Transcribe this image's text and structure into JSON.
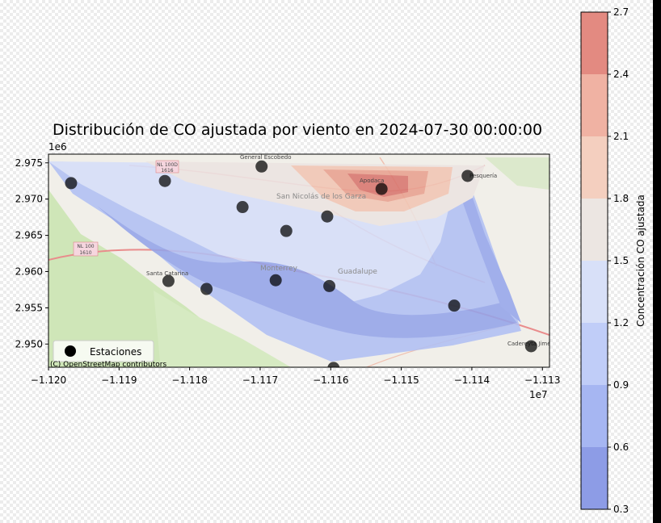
{
  "chart_data": {
    "type": "heatmap",
    "title": "Distribución de CO ajustada por viento en 2024-07-30 00:00:00",
    "x_offset_label": "1e7",
    "y_offset_label": "1e6",
    "xlim": [
      -11.2,
      -11.129
    ],
    "ylim": [
      2.9468,
      2.9762
    ],
    "x_ticks": [
      -11.2,
      -11.19,
      -11.18,
      -11.17,
      -11.16,
      -11.15,
      -11.14,
      -11.13
    ],
    "x_tick_labels": [
      "−1.120",
      "−1.119",
      "−1.118",
      "−1.117",
      "−1.116",
      "−1.115",
      "−1.114",
      "−1.113"
    ],
    "y_ticks": [
      2.95,
      2.955,
      2.96,
      2.965,
      2.97,
      2.975
    ],
    "y_tick_labels": [
      "2.950",
      "2.955",
      "2.960",
      "2.965",
      "2.970",
      "2.975"
    ],
    "colorbar": {
      "label": "Concentración CO ajustada",
      "levels": [
        0.3,
        0.6,
        0.9,
        1.2,
        1.5,
        1.8,
        2.1,
        2.4,
        2.7
      ],
      "tick_labels": [
        "0.3",
        "0.6",
        "0.9",
        "1.2",
        "1.5",
        "1.8",
        "2.1",
        "2.4",
        "2.7"
      ],
      "colors": [
        "#8d9ce6",
        "#a6b6f2",
        "#c0cdf8",
        "#d8e0f8",
        "#ece6e2",
        "#f4cfbf",
        "#f0b2a3",
        "#e38a81"
      ]
    },
    "legend": {
      "label": "Estaciones",
      "placement": "lower-left"
    },
    "attribution": "(C) OpenStreetMap contributors",
    "map_labels": [
      "General Escobedo",
      "San Nicolás de los Garza",
      "Apodaca",
      "Pesquería",
      "Monterrey",
      "Guadalupe",
      "Santa Catarina",
      "Cadereyta Jiménez",
      "NL 100",
      "1610",
      "NL 100D",
      "1616"
    ],
    "stations": [
      {
        "x": -11.1968,
        "y": 2.9722
      },
      {
        "x": -11.1835,
        "y": 2.9725
      },
      {
        "x": -11.1698,
        "y": 2.9745
      },
      {
        "x": -11.1725,
        "y": 2.9689
      },
      {
        "x": -11.1663,
        "y": 2.9656
      },
      {
        "x": -11.1605,
        "y": 2.9676
      },
      {
        "x": -11.1528,
        "y": 2.9714
      },
      {
        "x": -11.1406,
        "y": 2.9732
      },
      {
        "x": -11.183,
        "y": 2.9587
      },
      {
        "x": -11.1776,
        "y": 2.9576
      },
      {
        "x": -11.1678,
        "y": 2.9588
      },
      {
        "x": -11.1602,
        "y": 2.958
      },
      {
        "x": -11.1596,
        "y": 2.9467
      },
      {
        "x": -11.1425,
        "y": 2.9553
      },
      {
        "x": -11.1316,
        "y": 2.9497
      }
    ]
  }
}
